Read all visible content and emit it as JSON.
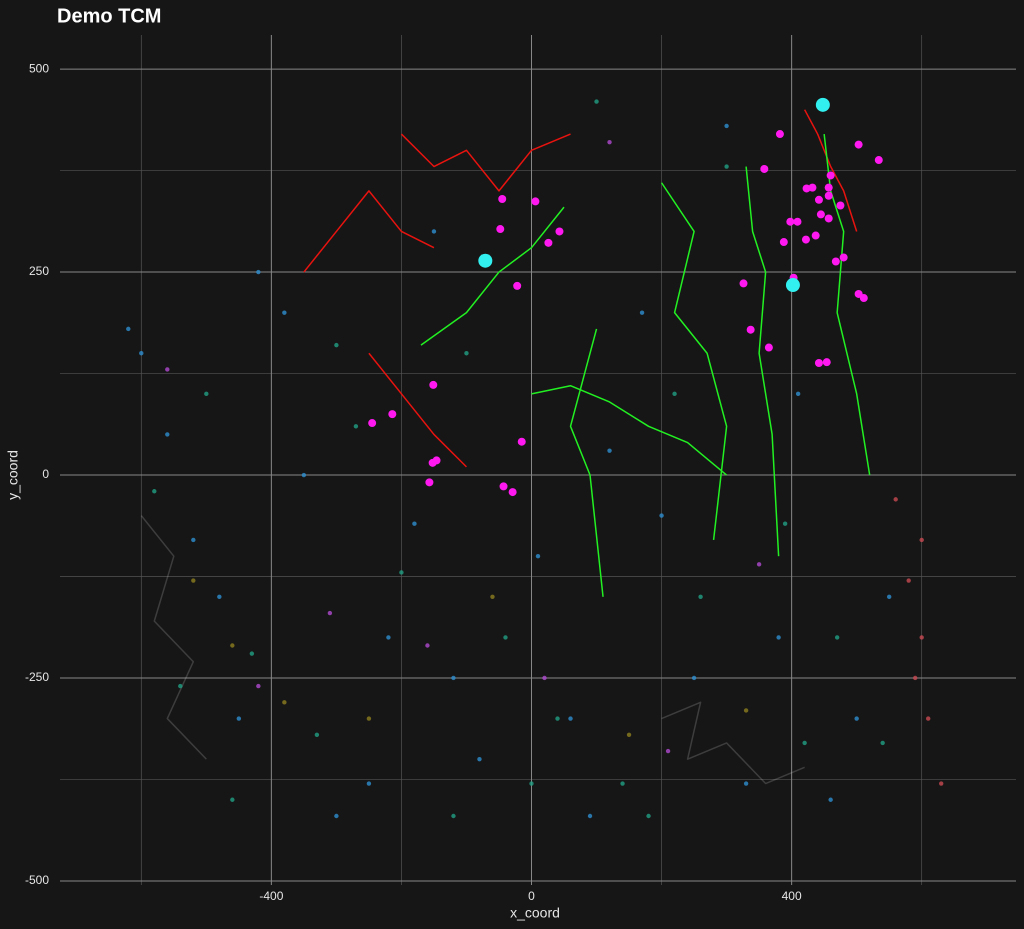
{
  "chart_data": {
    "type": "scatter",
    "title": "Demo TCM",
    "xlabel": "x_coord",
    "ylabel": "y_coord",
    "xlim": [
      -725,
      745
    ],
    "ylim": [
      -505,
      542
    ],
    "xticks": [
      -400,
      0,
      400
    ],
    "yticks": [
      -500,
      -250,
      0,
      250,
      500
    ],
    "xminor": [
      -600,
      -200,
      200,
      600
    ],
    "yminor": [
      -375,
      -125,
      125,
      375
    ],
    "grid": true,
    "background": "#161616",
    "tracks": [
      {
        "color": "rgba(200,200,200,0.22)",
        "x": [
          -600,
          -550,
          -580,
          -520,
          -560,
          -500
        ],
        "y": [
          -50,
          -100,
          -180,
          -230,
          -300,
          -350
        ]
      },
      {
        "color": "rgba(200,200,200,0.22)",
        "x": [
          200,
          260,
          240,
          300,
          360,
          420
        ],
        "y": [
          -300,
          -280,
          -350,
          -330,
          -380,
          -360
        ]
      },
      {
        "color": "#e8130f",
        "x": [
          -200,
          -150,
          -100,
          -50,
          0,
          60
        ],
        "y": [
          420,
          380,
          400,
          350,
          400,
          420
        ]
      },
      {
        "color": "#e8130f",
        "x": [
          -350,
          -300,
          -250,
          -200,
          -150
        ],
        "y": [
          250,
          300,
          350,
          300,
          280
        ]
      },
      {
        "color": "#e8130f",
        "x": [
          -250,
          -200,
          -150,
          -100
        ],
        "y": [
          150,
          100,
          50,
          10
        ]
      },
      {
        "color": "#e8130f",
        "x": [
          420,
          440,
          460,
          480,
          500
        ],
        "y": [
          450,
          420,
          380,
          350,
          300
        ]
      },
      {
        "color": "#22f022",
        "x": [
          0,
          60,
          120,
          180,
          240,
          300
        ],
        "y": [
          100,
          110,
          90,
          60,
          40,
          0
        ]
      },
      {
        "color": "#22f022",
        "x": [
          330,
          340,
          360,
          350,
          370,
          380
        ],
        "y": [
          380,
          300,
          250,
          150,
          50,
          -100
        ]
      },
      {
        "color": "#22f022",
        "x": [
          450,
          460,
          480,
          470,
          500,
          520
        ],
        "y": [
          420,
          350,
          300,
          200,
          100,
          0
        ]
      },
      {
        "color": "#22f022",
        "x": [
          100,
          80,
          60,
          90,
          110
        ],
        "y": [
          180,
          120,
          60,
          0,
          -150
        ]
      },
      {
        "color": "#22f022",
        "x": [
          -170,
          -100,
          -50,
          0,
          50
        ],
        "y": [
          160,
          200,
          250,
          280,
          330
        ]
      },
      {
        "color": "#22f022",
        "x": [
          200,
          250,
          220,
          270,
          300,
          280
        ],
        "y": [
          360,
          300,
          200,
          150,
          60,
          -80
        ]
      }
    ],
    "series": [
      {
        "color": "#2e8fd1",
        "size": 2.2,
        "x": [
          -600,
          -520,
          -450,
          -380,
          -300,
          -220,
          -150,
          -80,
          10,
          90,
          170,
          250,
          330,
          410,
          500,
          -560,
          -480,
          -350,
          -250,
          -120,
          60,
          200,
          380,
          550,
          -420,
          -180,
          120,
          300,
          460,
          -620
        ],
        "y": [
          150,
          -80,
          -300,
          200,
          -420,
          -200,
          300,
          -350,
          -100,
          -420,
          200,
          -250,
          -380,
          100,
          -300,
          50,
          -150,
          0,
          -380,
          -250,
          -300,
          -50,
          -200,
          -150,
          250,
          -60,
          30,
          430,
          -400,
          180
        ]
      },
      {
        "color": "#22a085",
        "size": 2.2,
        "x": [
          -580,
          -500,
          -430,
          -330,
          -270,
          -200,
          -120,
          -40,
          40,
          140,
          220,
          300,
          390,
          470,
          540,
          -460,
          -300,
          -100,
          100,
          260,
          420,
          -540,
          0,
          180
        ],
        "y": [
          -20,
          100,
          -220,
          -320,
          60,
          -120,
          -420,
          -200,
          -300,
          -380,
          100,
          380,
          -60,
          -200,
          -330,
          -400,
          160,
          150,
          460,
          -150,
          -330,
          -260,
          -380,
          -420
        ]
      },
      {
        "color": "#b04ad0",
        "size": 2.2,
        "x": [
          -560,
          -310,
          -160,
          20,
          210,
          350,
          -420,
          120
        ],
        "y": [
          130,
          -170,
          -210,
          -250,
          -340,
          -110,
          -260,
          410
        ]
      },
      {
        "color": "#8c7e1e",
        "size": 2.2,
        "x": [
          -520,
          -380,
          -250,
          -60,
          150,
          330,
          -460
        ],
        "y": [
          -130,
          -280,
          -300,
          -150,
          -320,
          -290,
          -210
        ]
      },
      {
        "color": "#c84a52",
        "size": 2.2,
        "x": [
          560,
          580,
          600,
          610,
          630,
          600,
          590
        ],
        "y": [
          -30,
          -130,
          -200,
          -300,
          -380,
          -80,
          -250
        ]
      },
      {
        "color": "#ff19f0",
        "size": 4,
        "x": [
          -45,
          6,
          -48,
          26,
          43,
          -22,
          -151,
          -214,
          -245,
          -152,
          -146,
          -157,
          -43,
          -29,
          -15,
          358,
          382,
          398,
          409,
          388,
          422,
          437,
          403,
          326,
          337,
          365,
          442,
          454,
          468,
          480,
          503,
          511,
          503,
          534,
          460,
          423,
          432,
          457,
          457,
          475,
          442,
          445,
          457
        ],
        "y": [
          340,
          337,
          303,
          286,
          300,
          233,
          111,
          75,
          64,
          15,
          18,
          -9,
          -14,
          -21,
          41,
          377,
          420,
          312,
          312,
          287,
          290,
          295,
          243,
          236,
          179,
          157,
          138,
          139,
          263,
          268,
          223,
          218,
          407,
          388,
          369,
          353,
          354,
          354,
          344,
          332,
          339,
          321,
          316
        ]
      },
      {
        "color": "#33f0f0",
        "size": 7,
        "x": [
          -71,
          402,
          448
        ],
        "y": [
          264,
          234,
          456
        ]
      }
    ]
  }
}
